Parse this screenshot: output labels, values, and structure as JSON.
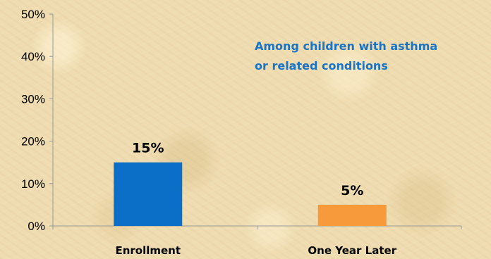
{
  "chart_data": {
    "type": "bar",
    "categories": [
      "Enrollment",
      "One Year Later"
    ],
    "values": [
      15,
      5
    ],
    "data_labels": [
      "15%",
      "5%"
    ],
    "bar_colors": [
      "#0b6fc7",
      "#f79a3c"
    ],
    "ylim": [
      0,
      50
    ],
    "yticks": [
      0,
      10,
      20,
      30,
      40,
      50
    ],
    "ytick_labels": [
      "0%",
      "10%",
      "20%",
      "30%",
      "40%",
      "50%"
    ],
    "axis_color": "#9a9a9a",
    "grid": false,
    "annotation": {
      "line1": "Among children with asthma",
      "line2": "or related conditions",
      "color": "#1a73c4"
    }
  }
}
